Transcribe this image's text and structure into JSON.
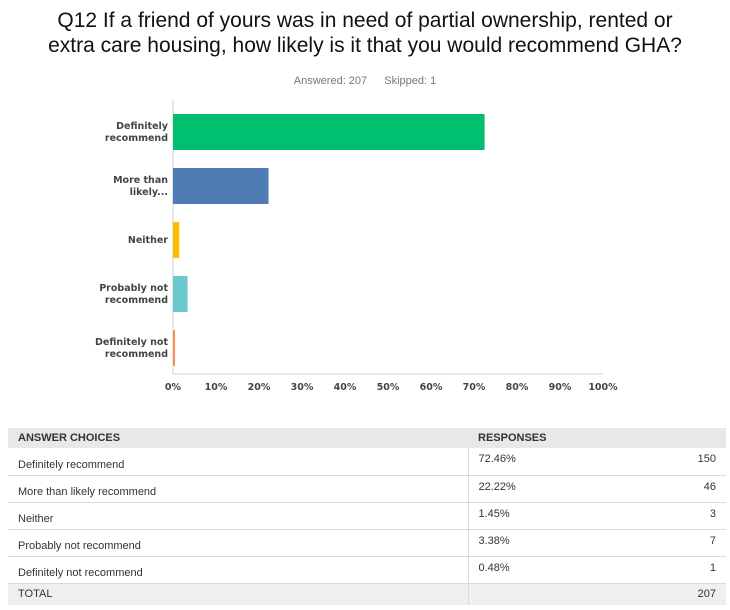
{
  "title": {
    "line1": "Q12 If a friend of yours was in need of partial ownership, rented or",
    "line2": "extra care housing, how likely is it that you would recommend GHA?"
  },
  "meta": {
    "answered": "Answered: 207",
    "skipped": "Skipped: 1"
  },
  "chart_data": {
    "type": "bar",
    "orientation": "horizontal",
    "categories": [
      [
        "Definitely",
        "recommend"
      ],
      [
        "More than",
        "likely..."
      ],
      [
        "Neither"
      ],
      [
        "Probably not",
        "recommend"
      ],
      [
        "Definitely not",
        "recommend"
      ]
    ],
    "values": [
      72.46,
      22.22,
      1.45,
      3.38,
      0.48
    ],
    "colors": [
      "#00bf6f",
      "#507cb6",
      "#f9be00",
      "#6bc8cd",
      "#ff8b4f"
    ],
    "xlim": [
      0,
      100
    ],
    "xticks": [
      "0%",
      "10%",
      "20%",
      "30%",
      "40%",
      "50%",
      "60%",
      "70%",
      "80%",
      "90%",
      "100%"
    ],
    "grid": false
  },
  "table": {
    "headers": {
      "choice": "ANSWER CHOICES",
      "responses": "RESPONSES"
    },
    "rows": [
      {
        "choice": "Definitely recommend",
        "pct": "72.46%",
        "count": "150"
      },
      {
        "choice": "More than likely recommend",
        "pct": "22.22%",
        "count": "46"
      },
      {
        "choice": "Neither",
        "pct": "1.45%",
        "count": "3"
      },
      {
        "choice": "Probably not recommend",
        "pct": "3.38%",
        "count": "7"
      },
      {
        "choice": "Definitely not recommend",
        "pct": "0.48%",
        "count": "1"
      }
    ],
    "total": {
      "label": "TOTAL",
      "count": "207"
    }
  }
}
